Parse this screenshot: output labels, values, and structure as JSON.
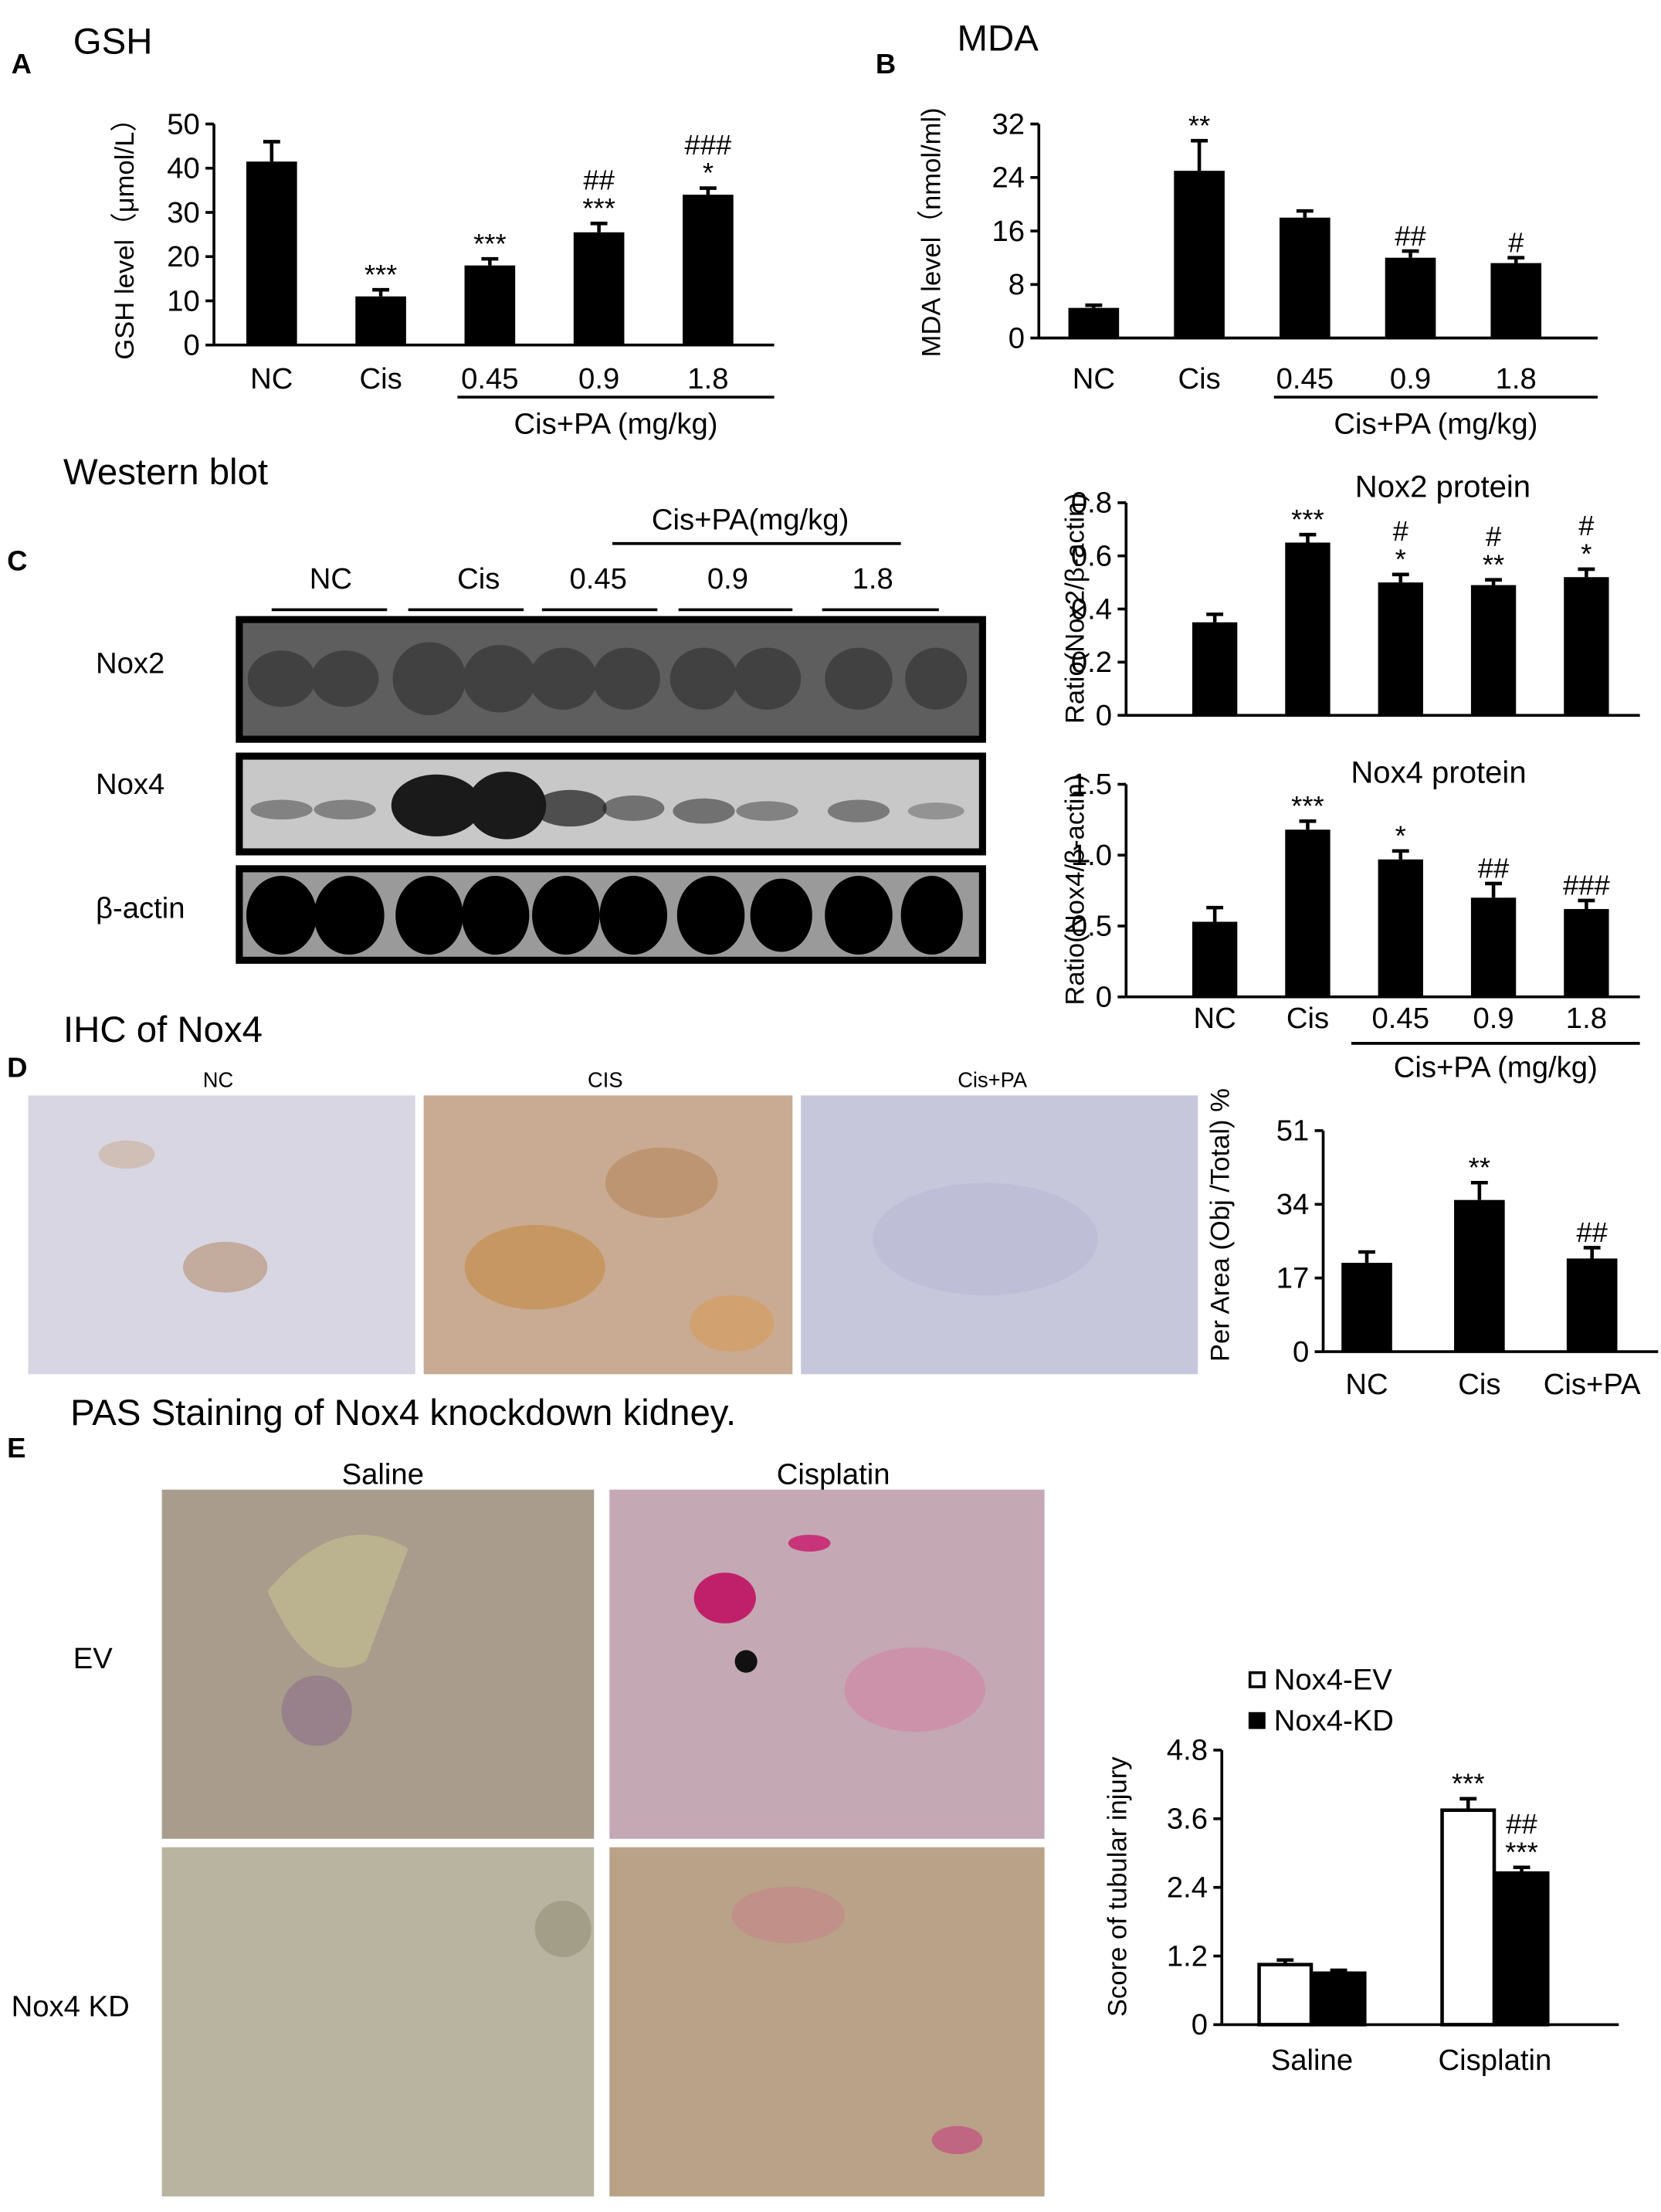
{
  "figure": {
    "panel_labels": [
      "A",
      "B",
      "C",
      "D",
      "E"
    ],
    "headings": [
      "Western blot",
      "IHC of Nox4",
      "PAS Staining of Nox4 knockdown kidney."
    ],
    "blot": {
      "group_label": "Cis+PA(mg/kg)",
      "lanes": [
        "NC",
        "Cis",
        "0.45",
        "0.9",
        "1.8"
      ],
      "rows": [
        "Nox2",
        "Nox4",
        "β-actin"
      ]
    },
    "ihc_labels": [
      "NC",
      "CIS",
      "Cis+PA"
    ],
    "pas": {
      "columns": [
        "Saline",
        "Cisplatin"
      ],
      "rows": [
        "EV",
        "Nox4 KD"
      ]
    }
  },
  "chart_data": [
    {
      "type": "bar",
      "title": "GSH",
      "y_label": "GSH level（μmol/L）",
      "categories": [
        "NC",
        "Cis",
        "0.45",
        "0.9",
        "1.8"
      ],
      "values": [
        41.5,
        11,
        18,
        25.5,
        34
      ],
      "errors": [
        4.5,
        1.5,
        1.5,
        2,
        1.5
      ],
      "annotations": [
        [],
        [
          "***"
        ],
        [
          "***"
        ],
        [
          "##",
          "***"
        ],
        [
          "###",
          "*"
        ]
      ],
      "group_label": "Cis+PA (mg/kg)",
      "color": "#000000",
      "ylim": [
        0,
        50
      ],
      "yticks": [
        0,
        10,
        20,
        30,
        40,
        50
      ]
    },
    {
      "type": "bar",
      "title": "MDA",
      "y_label": "MDA level（nmol/ml)",
      "categories": [
        "NC",
        "Cis",
        "0.45",
        "0.9",
        "1.8"
      ],
      "values": [
        4.5,
        25,
        18,
        12,
        11.2
      ],
      "errors": [
        0.4,
        4.5,
        1,
        1,
        0.8
      ],
      "annotations": [
        [],
        [
          "**"
        ],
        [],
        [
          "##"
        ],
        [
          "#"
        ]
      ],
      "group_label": "Cis+PA (mg/kg)",
      "color": "#000000",
      "ylim": [
        0,
        32
      ],
      "yticks": [
        0,
        8,
        16,
        24,
        32
      ]
    },
    {
      "type": "bar",
      "title": "Nox2 protein",
      "y_label": "Ratio(Nox2/β-actin)",
      "categories": [
        null,
        null,
        null,
        null,
        null
      ],
      "values": [
        0.35,
        0.65,
        0.5,
        0.49,
        0.52
      ],
      "errors": [
        0.03,
        0.03,
        0.03,
        0.02,
        0.03
      ],
      "annotations": [
        [],
        [
          "***"
        ],
        [
          "#",
          "*"
        ],
        [
          "#",
          "**"
        ],
        [
          "#",
          "*"
        ]
      ],
      "color": "#000000",
      "ylim": [
        0,
        0.8
      ],
      "yticks": [
        0,
        0.2,
        0.4,
        0.6,
        0.8
      ]
    },
    {
      "type": "bar",
      "title": "Nox4 protein",
      "y_label": "Ratio(Nox4/β-actin)",
      "categories": [
        "NC",
        "Cis",
        "0.45",
        "0.9",
        "1.8"
      ],
      "values": [
        0.53,
        1.18,
        0.97,
        0.7,
        0.62
      ],
      "errors": [
        0.1,
        0.06,
        0.06,
        0.1,
        0.06
      ],
      "annotations": [
        [],
        [
          "***"
        ],
        [
          "*"
        ],
        [
          "##"
        ],
        [
          "###"
        ]
      ],
      "group_label": "Cis+PA (mg/kg)",
      "color": "#000000",
      "ylim": [
        0,
        1.5
      ],
      "yticks": [
        0,
        0.5,
        {
          "value": 1,
          "label": "1.0"
        },
        1.5
      ]
    },
    {
      "type": "bar",
      "y_label": "Per Area (Obj /Total) %",
      "categories": [
        "NC",
        "Cis",
        "Cis+PA"
      ],
      "values": [
        20.5,
        35,
        21.5
      ],
      "errors": [
        2.5,
        4,
        2.5
      ],
      "annotations": [
        [],
        [
          "**"
        ],
        [
          "##"
        ]
      ],
      "color": "#000000",
      "ylim": [
        0,
        51
      ],
      "yticks": [
        0,
        17,
        34,
        51
      ]
    },
    {
      "type": "grouped_bar",
      "y_label": "Score of tubular injury",
      "categories": [
        "Saline",
        "Cisplatin"
      ],
      "series": [
        {
          "name": "Nox4-EV",
          "color": "#ffffff",
          "values": [
            1.05,
            3.75
          ],
          "errors": [
            0.08,
            0.2
          ],
          "annotations": [
            [],
            [
              "***"
            ]
          ]
        },
        {
          "name": "Nox4-KD",
          "color": "#000000",
          "values": [
            0.9,
            2.65
          ],
          "errors": [
            0.05,
            0.1
          ],
          "annotations": [
            [],
            [
              "##",
              "***"
            ]
          ]
        }
      ],
      "ylim": [
        0,
        4.8
      ],
      "yticks": [
        0,
        1.2,
        2.4,
        3.6,
        4.8
      ]
    }
  ]
}
